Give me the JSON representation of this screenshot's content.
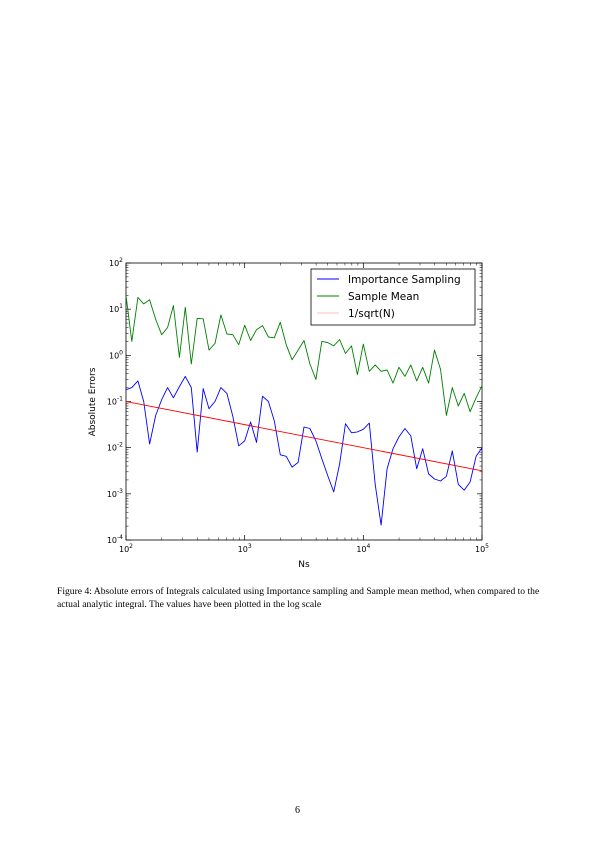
{
  "page": {
    "caption": "Figure 4: Absolute errors of Integrals calculated using Importance sampling and Sample mean method, when compared to the actual analytic integral. The values have been plotted in the log scale",
    "page_number": "6"
  },
  "chart_data": {
    "type": "line",
    "title": "",
    "xlabel": "Ns",
    "ylabel": "Absolute Errors",
    "xscale": "log",
    "yscale": "log",
    "xlim": [
      100,
      100000
    ],
    "ylim": [
      0.0001,
      100
    ],
    "grid": false,
    "legend_position": "top-right",
    "x_ticks": [
      {
        "value": 100,
        "base": "10",
        "exp": "2"
      },
      {
        "value": 1000,
        "base": "10",
        "exp": "3"
      },
      {
        "value": 10000,
        "base": "10",
        "exp": "4"
      },
      {
        "value": 100000,
        "base": "10",
        "exp": "5"
      }
    ],
    "y_ticks": [
      {
        "value": 0.0001,
        "base": "10",
        "exp": "-4"
      },
      {
        "value": 0.001,
        "base": "10",
        "exp": "-3"
      },
      {
        "value": 0.01,
        "base": "10",
        "exp": "-2"
      },
      {
        "value": 0.1,
        "base": "10",
        "exp": "-1"
      },
      {
        "value": 1,
        "base": "10",
        "exp": "0"
      },
      {
        "value": 10,
        "base": "10",
        "exp": "1"
      },
      {
        "value": 100,
        "base": "10",
        "exp": "2"
      }
    ],
    "series": [
      {
        "name": "Importance Sampling",
        "color": "#0000ff",
        "x": [
          100,
          112,
          126,
          141,
          158,
          178,
          200,
          224,
          251,
          282,
          316,
          355,
          398,
          447,
          501,
          562,
          631,
          708,
          794,
          891,
          1000,
          1122,
          1259,
          1413,
          1585,
          1778,
          1995,
          2239,
          2512,
          2818,
          3162,
          3548,
          3981,
          4467,
          5012,
          5623,
          6310,
          7079,
          7943,
          8913,
          10000,
          11220,
          12589,
          14125,
          15849,
          17783,
          19953,
          22387,
          25119,
          28184,
          31623,
          35481,
          39811,
          44668,
          50119,
          56234,
          63096,
          70795,
          79433,
          89125,
          100000
        ],
        "y": [
          0.18,
          0.2,
          0.28,
          0.1,
          0.012,
          0.05,
          0.11,
          0.2,
          0.12,
          0.21,
          0.35,
          0.2,
          0.008,
          0.19,
          0.07,
          0.1,
          0.2,
          0.15,
          0.048,
          0.011,
          0.014,
          0.036,
          0.013,
          0.13,
          0.1,
          0.038,
          0.007,
          0.0065,
          0.0038,
          0.0048,
          0.028,
          0.026,
          0.014,
          0.0058,
          0.0025,
          0.0011,
          0.0044,
          0.033,
          0.021,
          0.022,
          0.025,
          0.034,
          0.0016,
          0.00021,
          0.0035,
          0.0095,
          0.017,
          0.026,
          0.018,
          0.0035,
          0.0095,
          0.0027,
          0.0021,
          0.0019,
          0.0024,
          0.0085,
          0.0016,
          0.0012,
          0.0018,
          0.0065,
          0.01
        ]
      },
      {
        "name": "Sample Mean",
        "color": "#008000",
        "x": [
          100,
          112,
          126,
          141,
          158,
          178,
          200,
          224,
          251,
          282,
          316,
          355,
          398,
          447,
          501,
          562,
          631,
          708,
          794,
          891,
          1000,
          1122,
          1259,
          1413,
          1585,
          1778,
          1995,
          2239,
          2512,
          2818,
          3162,
          3548,
          3981,
          4467,
          5012,
          5623,
          6310,
          7079,
          7943,
          8913,
          10000,
          11220,
          12589,
          14125,
          15849,
          17783,
          19953,
          22387,
          25119,
          28184,
          31623,
          35481,
          39811,
          44668,
          50119,
          56234,
          63096,
          70795,
          79433,
          89125,
          100000
        ],
        "y": [
          20,
          2,
          18,
          13,
          16,
          6,
          2.8,
          4,
          12,
          0.9,
          11,
          0.65,
          6.3,
          6.2,
          1.3,
          1.8,
          7.5,
          2.9,
          2.8,
          1.7,
          4.5,
          2.1,
          3.6,
          4.4,
          2.5,
          2.4,
          5.2,
          1.7,
          0.8,
          1.3,
          2.1,
          0.65,
          0.3,
          2,
          1.9,
          1.6,
          2.2,
          1.1,
          1.6,
          0.38,
          1.75,
          0.45,
          0.62,
          0.45,
          0.48,
          0.25,
          0.55,
          0.35,
          0.62,
          0.28,
          0.55,
          0.25,
          1.3,
          0.5,
          0.05,
          0.2,
          0.08,
          0.15,
          0.06,
          0.12,
          0.22
        ]
      },
      {
        "name": "1/sqrt(N)",
        "color": "#ff0000",
        "legend_color": "#ffbcbc",
        "x": [
          100,
          100000
        ],
        "y": [
          0.1,
          0.00316
        ]
      }
    ]
  }
}
